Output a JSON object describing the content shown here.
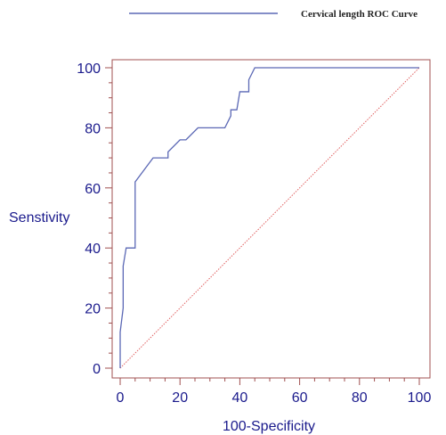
{
  "chart_data": {
    "type": "line",
    "xlabel": "100-Specificity",
    "ylabel": "Senstivity",
    "xlim": [
      0,
      100
    ],
    "ylim": [
      0,
      100
    ],
    "xticks": [
      "0",
      "20",
      "40",
      "60",
      "80",
      "100"
    ],
    "yticks": [
      "0",
      "20",
      "40",
      "60",
      "80",
      "100"
    ],
    "legend": {
      "placement": "top-right",
      "label": "Cervical length ROC Curve"
    },
    "colors": {
      "roc": "#5b68b5",
      "diagonal": "#e06060",
      "frame": "#a05050",
      "text": "#1a1a8c"
    },
    "series": [
      {
        "name": "Cervical length ROC Curve",
        "x": [
          0,
          0,
          1,
          1,
          2,
          5,
          5,
          11,
          16,
          16,
          20,
          22,
          26,
          35,
          37,
          37,
          39,
          40,
          43,
          43,
          45,
          100
        ],
        "y": [
          0,
          12,
          20,
          34,
          40,
          40,
          62,
          70,
          70,
          72,
          76,
          76,
          80,
          80,
          84,
          86,
          86,
          92,
          92,
          96,
          100,
          100
        ]
      },
      {
        "name": "",
        "x": [
          0,
          100
        ],
        "y": [
          0,
          100
        ]
      }
    ]
  }
}
